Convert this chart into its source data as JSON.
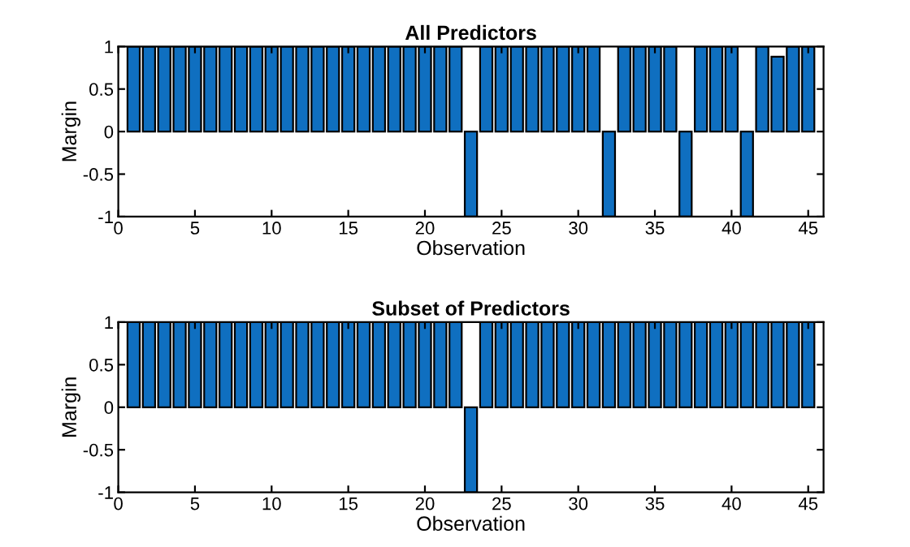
{
  "chart_data": [
    {
      "type": "bar",
      "title": "All Predictors",
      "xlabel": "Observation",
      "ylabel": "Margin",
      "x": [
        1,
        2,
        3,
        4,
        5,
        6,
        7,
        8,
        9,
        10,
        11,
        12,
        13,
        14,
        15,
        16,
        17,
        18,
        19,
        20,
        21,
        22,
        23,
        24,
        25,
        26,
        27,
        28,
        29,
        30,
        31,
        32,
        33,
        34,
        35,
        36,
        37,
        38,
        39,
        40,
        41,
        42,
        43,
        44,
        45
      ],
      "values": [
        1,
        1,
        1,
        1,
        1,
        1,
        1,
        1,
        1,
        1,
        1,
        1,
        1,
        1,
        1,
        1,
        1,
        1,
        1,
        1,
        1,
        1,
        -1,
        1,
        1,
        1,
        1,
        1,
        1,
        1,
        1,
        -1,
        1,
        1,
        1,
        1,
        -1,
        1,
        1,
        1,
        -1,
        1,
        0.88,
        1,
        1
      ],
      "color": "#0f6fc0",
      "xlim": [
        0,
        46
      ],
      "xticks": [
        0,
        5,
        10,
        15,
        20,
        25,
        30,
        35,
        40,
        45
      ],
      "ylim": [
        -1,
        1
      ],
      "yticks": [
        -1,
        -0.5,
        0,
        0.5,
        1
      ],
      "grid": false,
      "legend": false
    },
    {
      "type": "bar",
      "title": "Subset of Predictors",
      "xlabel": "Observation",
      "ylabel": "Margin",
      "x": [
        1,
        2,
        3,
        4,
        5,
        6,
        7,
        8,
        9,
        10,
        11,
        12,
        13,
        14,
        15,
        16,
        17,
        18,
        19,
        20,
        21,
        22,
        23,
        24,
        25,
        26,
        27,
        28,
        29,
        30,
        31,
        32,
        33,
        34,
        35,
        36,
        37,
        38,
        39,
        40,
        41,
        42,
        43,
        44,
        45
      ],
      "values": [
        1,
        1,
        1,
        1,
        1,
        1,
        1,
        1,
        1,
        1,
        1,
        1,
        1,
        1,
        1,
        1,
        1,
        1,
        1,
        1,
        1,
        1,
        -1,
        1,
        1,
        1,
        1,
        1,
        1,
        1,
        1,
        1,
        1,
        1,
        1,
        1,
        1,
        1,
        1,
        1,
        1,
        1,
        1,
        1,
        1
      ],
      "color": "#0f6fc0",
      "xlim": [
        0,
        46
      ],
      "xticks": [
        0,
        5,
        10,
        15,
        20,
        25,
        30,
        35,
        40,
        45
      ],
      "ylim": [
        -1,
        1
      ],
      "yticks": [
        -1,
        -0.5,
        0,
        0.5,
        1
      ],
      "grid": false,
      "legend": false
    }
  ]
}
